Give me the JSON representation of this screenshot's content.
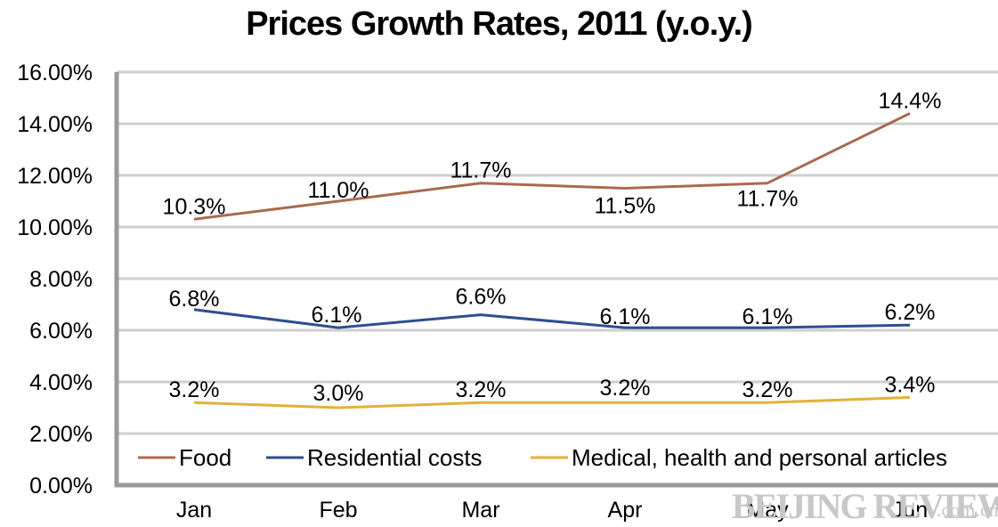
{
  "chart_data": {
    "type": "line",
    "title": "Prices Growth Rates, 2011 (y.o.y.)",
    "categories": [
      "Jan",
      "Feb",
      "Mar",
      "Apr",
      "May",
      "Jun"
    ],
    "y_ticks": [
      "0.00%",
      "2.00%",
      "4.00%",
      "6.00%",
      "8.00%",
      "10.00%",
      "12.00%",
      "14.00%",
      "16.00%"
    ],
    "ylim": [
      0,
      16
    ],
    "grid": true,
    "legend_position": "bottom",
    "series": [
      {
        "name": "Food",
        "color": "#a96a4e",
        "values": [
          10.3,
          11.0,
          11.7,
          11.5,
          11.7,
          14.4
        ],
        "labels": [
          "10.3%",
          "11.0%",
          "11.7%",
          "11.5%",
          "11.7%",
          "14.4%"
        ]
      },
      {
        "name": "Residential costs",
        "color": "#2e4f8f",
        "values": [
          6.8,
          6.1,
          6.6,
          6.1,
          6.1,
          6.2
        ],
        "labels": [
          "6.8%",
          "6.1%",
          "6.6%",
          "6.1%",
          "6.1%",
          "6.2%"
        ]
      },
      {
        "name": "Medical, health and personal articles",
        "color": "#e3b13a",
        "values": [
          3.2,
          3.0,
          3.2,
          3.2,
          3.2,
          3.4
        ],
        "labels": [
          "3.2%",
          "3.0%",
          "3.2%",
          "3.2%",
          "3.2%",
          "3.4%"
        ]
      }
    ]
  },
  "watermark": {
    "brand": "BEIJING REVIEW",
    "domain": ".com.cn"
  }
}
